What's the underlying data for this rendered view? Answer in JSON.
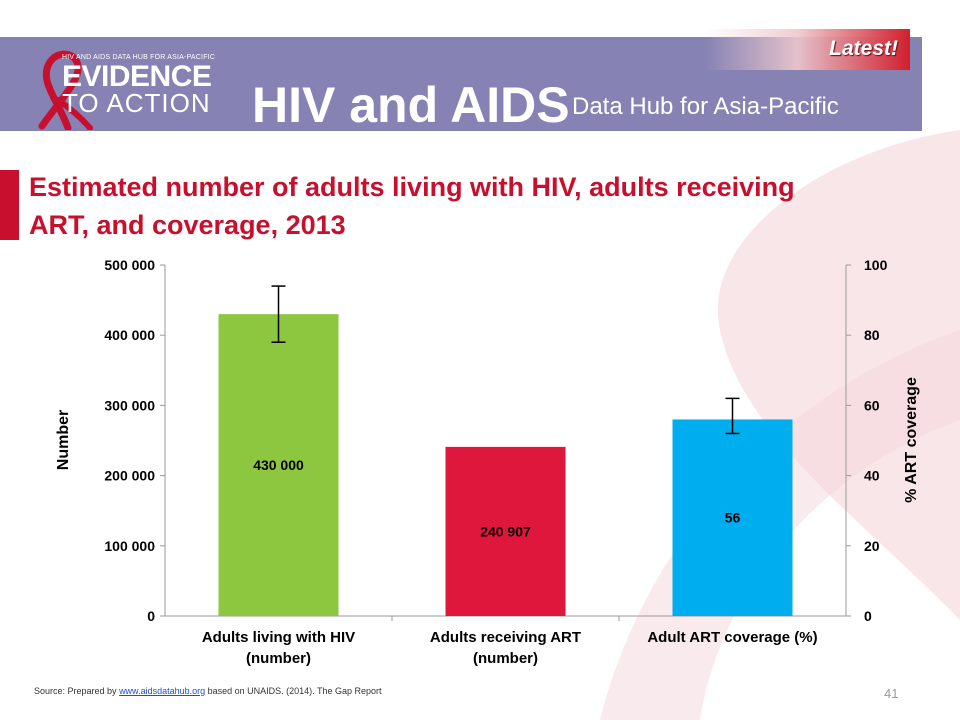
{
  "header": {
    "logo_small": "HIV AND AIDS DATA HUB FOR ASIA-PACIFIC",
    "logo_line1": "EVIDENCE",
    "logo_line2": "TO ACTION",
    "title": "HIV and AIDS",
    "subtitle": "Data Hub for Asia-Pacific",
    "latest_badge": "Latest!"
  },
  "colors": {
    "banner": "#8682b3",
    "title_red": "#c8102e",
    "bar_green": "#8dc63f",
    "bar_red": "#e0173c",
    "bar_blue": "#00aeef"
  },
  "page_title": "Estimated number of adults living with HIV, adults receiving ART, and coverage, 2013",
  "chart_data": {
    "type": "bar",
    "ylabel": "Number",
    "y2label": "% ART coverage",
    "ylim": [
      0,
      500000
    ],
    "y2lim": [
      0,
      100
    ],
    "yticks": [
      "0",
      "100 000",
      "200 000",
      "300 000",
      "400 000",
      "500 000"
    ],
    "y2ticks": [
      "0",
      "20",
      "40",
      "60",
      "80",
      "100"
    ],
    "categories": [
      [
        "Adults living with HIV",
        "(number)"
      ],
      [
        "Adults receiving ART",
        "(number)"
      ],
      [
        "Adult ART coverage (%)"
      ]
    ],
    "bars": [
      {
        "value": 430000,
        "axis": "left",
        "label": "430 000",
        "color": "#8dc63f",
        "error": [
          390000,
          470000
        ]
      },
      {
        "value": 240907,
        "axis": "left",
        "label": "240 907",
        "color": "#e0173c",
        "error": null
      },
      {
        "value": 56,
        "axis": "right",
        "label": "56",
        "color": "#00aeef",
        "error": [
          52,
          62
        ]
      }
    ],
    "grid": false,
    "legend": "none"
  },
  "footer": {
    "prefix": "Source:  Prepared by ",
    "link": "www.aidsdatahub.org",
    "suffix": "  based on UNAIDS. (2014). The Gap Report"
  },
  "page_number": "41"
}
